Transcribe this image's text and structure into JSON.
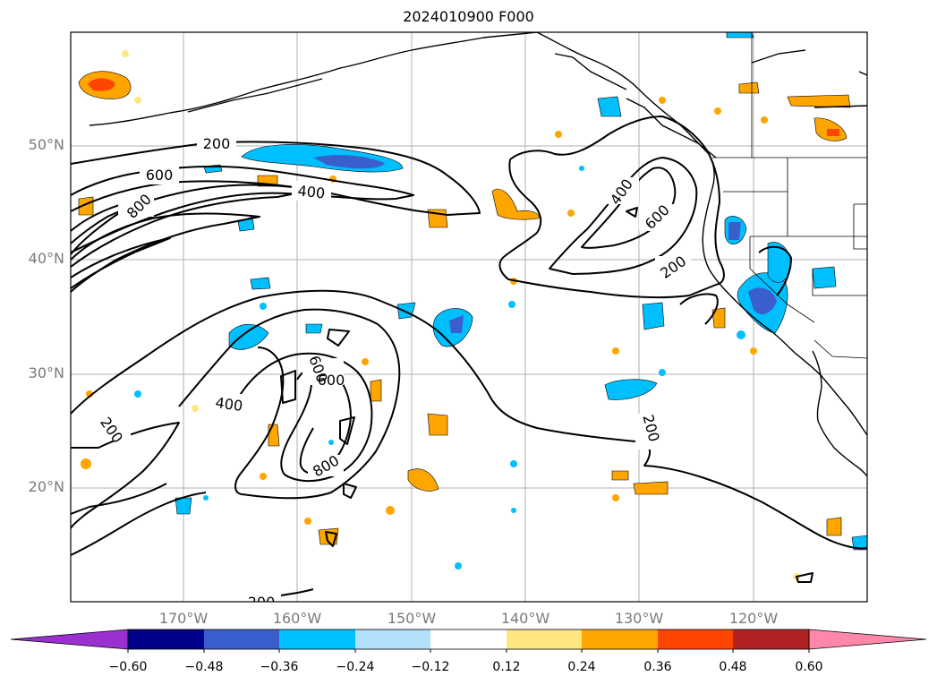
{
  "title": "2024010900 F000",
  "lat_labels": [
    "50°N",
    "40°N",
    "30°N",
    "20°N"
  ],
  "lon_labels": [
    "170°W",
    "160°W",
    "150°W",
    "140°W",
    "130°W",
    "120°W"
  ],
  "contour_labels": [
    "200",
    "600",
    "400",
    "800",
    "400",
    "600",
    "200",
    "400",
    "600",
    "800",
    "200",
    "800",
    "200",
    "200"
  ],
  "colorbar": {
    "ticks": [
      "−0.60",
      "−0.48",
      "−0.36",
      "−0.24",
      "−0.12",
      "0.12",
      "0.24",
      "0.36",
      "0.48",
      "0.60"
    ],
    "colors": [
      "#9b30d0",
      "#00008b",
      "#3a5fcd",
      "#00bfff",
      "#b0e0fa",
      "#ffffff",
      "#ffe680",
      "#ffa500",
      "#ff4500",
      "#b22222",
      "#ff88aa",
      "#ff88aa"
    ]
  },
  "palette": {
    "neg1": "#b0e0fa",
    "neg2": "#00bfff",
    "neg3": "#3a5fcd",
    "neg4": "#00008b",
    "pos1": "#ffe680",
    "pos2": "#ffa500",
    "pos3": "#ff4500",
    "pos4": "#b22222"
  }
}
